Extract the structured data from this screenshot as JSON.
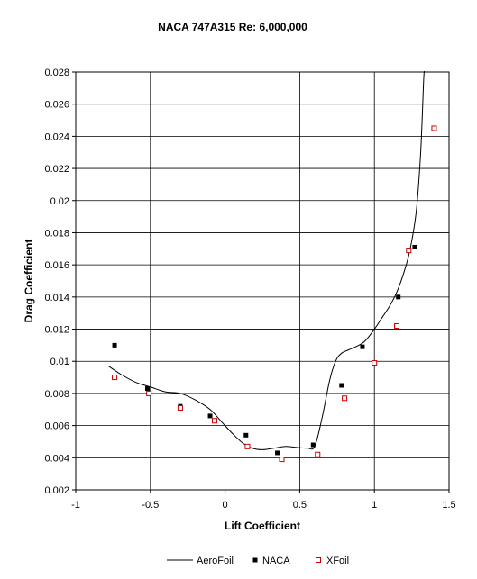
{
  "chart_data": {
    "type": "scatter",
    "title": "NACA 747A315 Re: 6,000,000",
    "xlabel": "Lift Coefficient",
    "ylabel": "Drag Coefficient",
    "xlim": [
      -1,
      1.5
    ],
    "ylim": [
      0.002,
      0.028
    ],
    "x_ticks": [
      "-1",
      "-0.5",
      "0",
      "0.5",
      "1",
      "1.5"
    ],
    "y_ticks": [
      "0.002",
      "0.004",
      "0.006",
      "0.008",
      "0.01",
      "0.012",
      "0.014",
      "0.016",
      "0.018",
      "0.02",
      "0.022",
      "0.024",
      "0.026",
      "0.028"
    ],
    "grid": true,
    "legend_position": "bottom",
    "series": [
      {
        "name": "AeroFoil",
        "kind": "line",
        "color": "#000000",
        "points": [
          [
            -0.78,
            0.0097
          ],
          [
            -0.7,
            0.0092
          ],
          [
            -0.6,
            0.0087
          ],
          [
            -0.5,
            0.0084
          ],
          [
            -0.4,
            0.0081
          ],
          [
            -0.3,
            0.008
          ],
          [
            -0.2,
            0.0076
          ],
          [
            -0.1,
            0.007
          ],
          [
            -0.02,
            0.0062
          ],
          [
            0.05,
            0.0055
          ],
          [
            0.12,
            0.0049
          ],
          [
            0.18,
            0.0046
          ],
          [
            0.25,
            0.0045
          ],
          [
            0.33,
            0.0046
          ],
          [
            0.4,
            0.0047
          ],
          [
            0.47,
            0.00465
          ],
          [
            0.55,
            0.0046
          ],
          [
            0.6,
            0.0047
          ],
          [
            0.65,
            0.0065
          ],
          [
            0.7,
            0.0088
          ],
          [
            0.74,
            0.01
          ],
          [
            0.78,
            0.0105
          ],
          [
            0.85,
            0.0108
          ],
          [
            0.93,
            0.0112
          ],
          [
            1.0,
            0.012
          ],
          [
            1.05,
            0.0127
          ],
          [
            1.1,
            0.0134
          ],
          [
            1.15,
            0.0143
          ],
          [
            1.2,
            0.0156
          ],
          [
            1.24,
            0.017
          ],
          [
            1.28,
            0.0193
          ],
          [
            1.31,
            0.023
          ],
          [
            1.33,
            0.0275
          ],
          [
            1.335,
            0.0282
          ]
        ]
      },
      {
        "name": "NACA",
        "kind": "filled-square",
        "color": "#000000",
        "points": [
          [
            -0.74,
            0.011
          ],
          [
            -0.52,
            0.0083
          ],
          [
            -0.3,
            0.0072
          ],
          [
            -0.1,
            0.0066
          ],
          [
            0.14,
            0.0054
          ],
          [
            0.35,
            0.0043
          ],
          [
            0.59,
            0.0048
          ],
          [
            0.78,
            0.0085
          ],
          [
            0.92,
            0.0109
          ],
          [
            1.16,
            0.014
          ],
          [
            1.27,
            0.0171
          ]
        ]
      },
      {
        "name": "XFoil",
        "kind": "hollow-square",
        "color": "#cc0000",
        "points": [
          [
            -0.74,
            0.009
          ],
          [
            -0.51,
            0.008
          ],
          [
            -0.3,
            0.0071
          ],
          [
            -0.07,
            0.0063
          ],
          [
            0.15,
            0.0047
          ],
          [
            0.38,
            0.0039
          ],
          [
            0.62,
            0.0042
          ],
          [
            0.8,
            0.0077
          ],
          [
            1.0,
            0.0099
          ],
          [
            1.15,
            0.0122
          ],
          [
            1.23,
            0.0169
          ],
          [
            1.4,
            0.0245
          ]
        ]
      }
    ]
  }
}
